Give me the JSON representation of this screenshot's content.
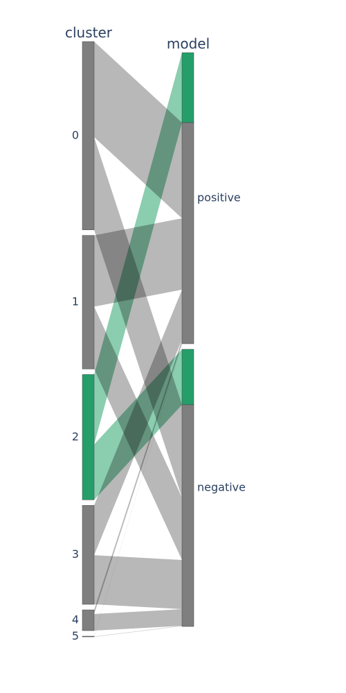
{
  "chart_data": {
    "type": "parallel_categories",
    "dimensions": [
      {
        "label": "cluster",
        "categories": [
          {
            "label": "0",
            "total": 272,
            "highlighted": 0
          },
          {
            "label": "1",
            "total": 193,
            "highlighted": 0
          },
          {
            "label": "2",
            "total": 181,
            "highlighted": 181
          },
          {
            "label": "3",
            "total": 143,
            "highlighted": 0
          },
          {
            "label": "4",
            "total": 30,
            "highlighted": 0
          },
          {
            "label": "5",
            "total": 1,
            "highlighted": 0
          }
        ]
      },
      {
        "label": "model",
        "categories": [
          {
            "label": "positive",
            "total": 420,
            "highlighted": 101
          },
          {
            "label": "negative",
            "total": 400,
            "highlighted": 80
          }
        ]
      }
    ],
    "flows": [
      {
        "from": "0",
        "to": "positive",
        "value": 138,
        "color": "gray"
      },
      {
        "from": "0",
        "to": "negative",
        "value": 134,
        "color": "gray"
      },
      {
        "from": "1",
        "to": "positive",
        "value": 103,
        "color": "gray"
      },
      {
        "from": "1",
        "to": "negative",
        "value": 90,
        "color": "gray"
      },
      {
        "from": "2",
        "to": "positive",
        "value": 101,
        "color": "green"
      },
      {
        "from": "2",
        "to": "negative",
        "value": 80,
        "color": "green"
      },
      {
        "from": "3",
        "to": "positive",
        "value": 72,
        "color": "gray"
      },
      {
        "from": "3",
        "to": "negative",
        "value": 71,
        "color": "gray"
      },
      {
        "from": "4",
        "to": "positive",
        "value": 6,
        "color": "gray"
      },
      {
        "from": "4",
        "to": "negative",
        "value": 24,
        "color": "gray"
      },
      {
        "from": "5",
        "to": "positive",
        "value": 0.5,
        "color": "gray"
      },
      {
        "from": "5",
        "to": "negative",
        "value": 0.5,
        "color": "gray"
      }
    ],
    "colors": {
      "gray": "#7f7f7f",
      "green": "#259e6a",
      "gray_flow": "#b0b0b0",
      "green_flow": "#7ec8a6",
      "title_text": "#2a3f5f"
    }
  }
}
